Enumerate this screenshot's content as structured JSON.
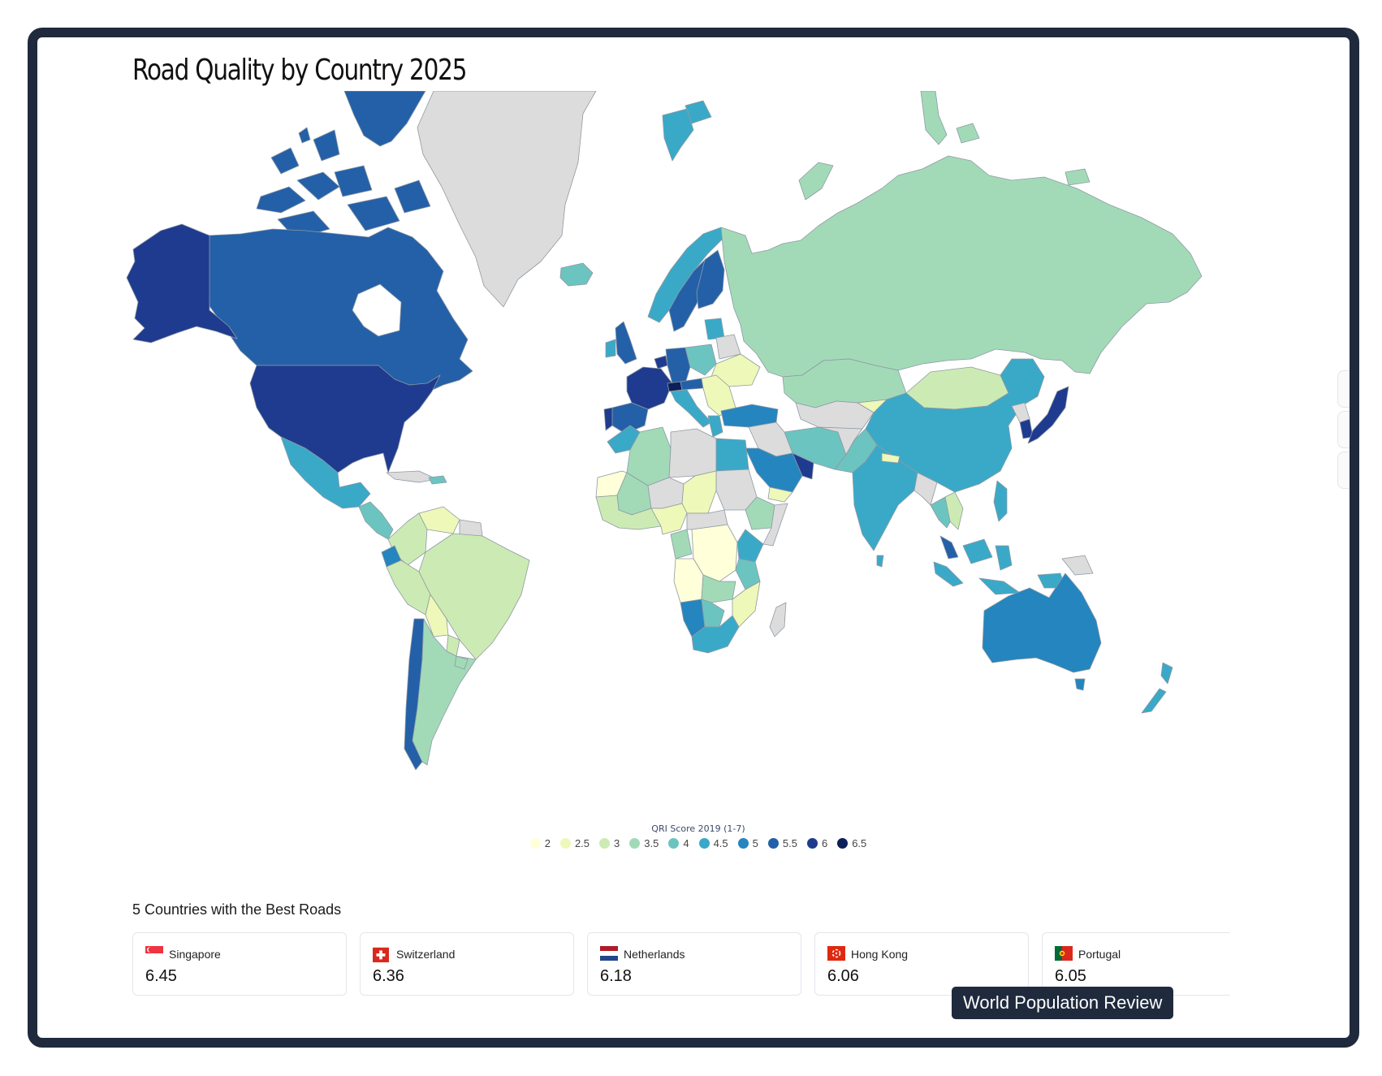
{
  "title": "Road Quality by Country 2025",
  "legend": {
    "title": "QRI Score 2019 (1-7)",
    "items": [
      {
        "label": "2",
        "color": "#ffffd9"
      },
      {
        "label": "2.5",
        "color": "#eef8b8"
      },
      {
        "label": "3",
        "color": "#ccebb4"
      },
      {
        "label": "3.5",
        "color": "#a2dab8"
      },
      {
        "label": "4",
        "color": "#6cc4c0"
      },
      {
        "label": "4.5",
        "color": "#3aa9c8"
      },
      {
        "label": "5",
        "color": "#2585be"
      },
      {
        "label": "5.5",
        "color": "#2460a8"
      },
      {
        "label": "6",
        "color": "#1f3b8f"
      },
      {
        "label": "6.5",
        "color": "#0c1f5a"
      }
    ]
  },
  "no_data_color": "#dcdcdc",
  "best": {
    "title": "5 Countries with the Best Roads",
    "countries": [
      {
        "name": "Singapore",
        "value": "6.45",
        "flag": "singapore"
      },
      {
        "name": "Switzerland",
        "value": "6.36",
        "flag": "switzerland"
      },
      {
        "name": "Netherlands",
        "value": "6.18",
        "flag": "netherlands"
      },
      {
        "name": "Hong Kong",
        "value": "6.06",
        "flag": "hong-kong"
      },
      {
        "name": "Portugal",
        "value": "6.05",
        "flag": "portugal"
      }
    ]
  },
  "brand": "World Population Review"
}
